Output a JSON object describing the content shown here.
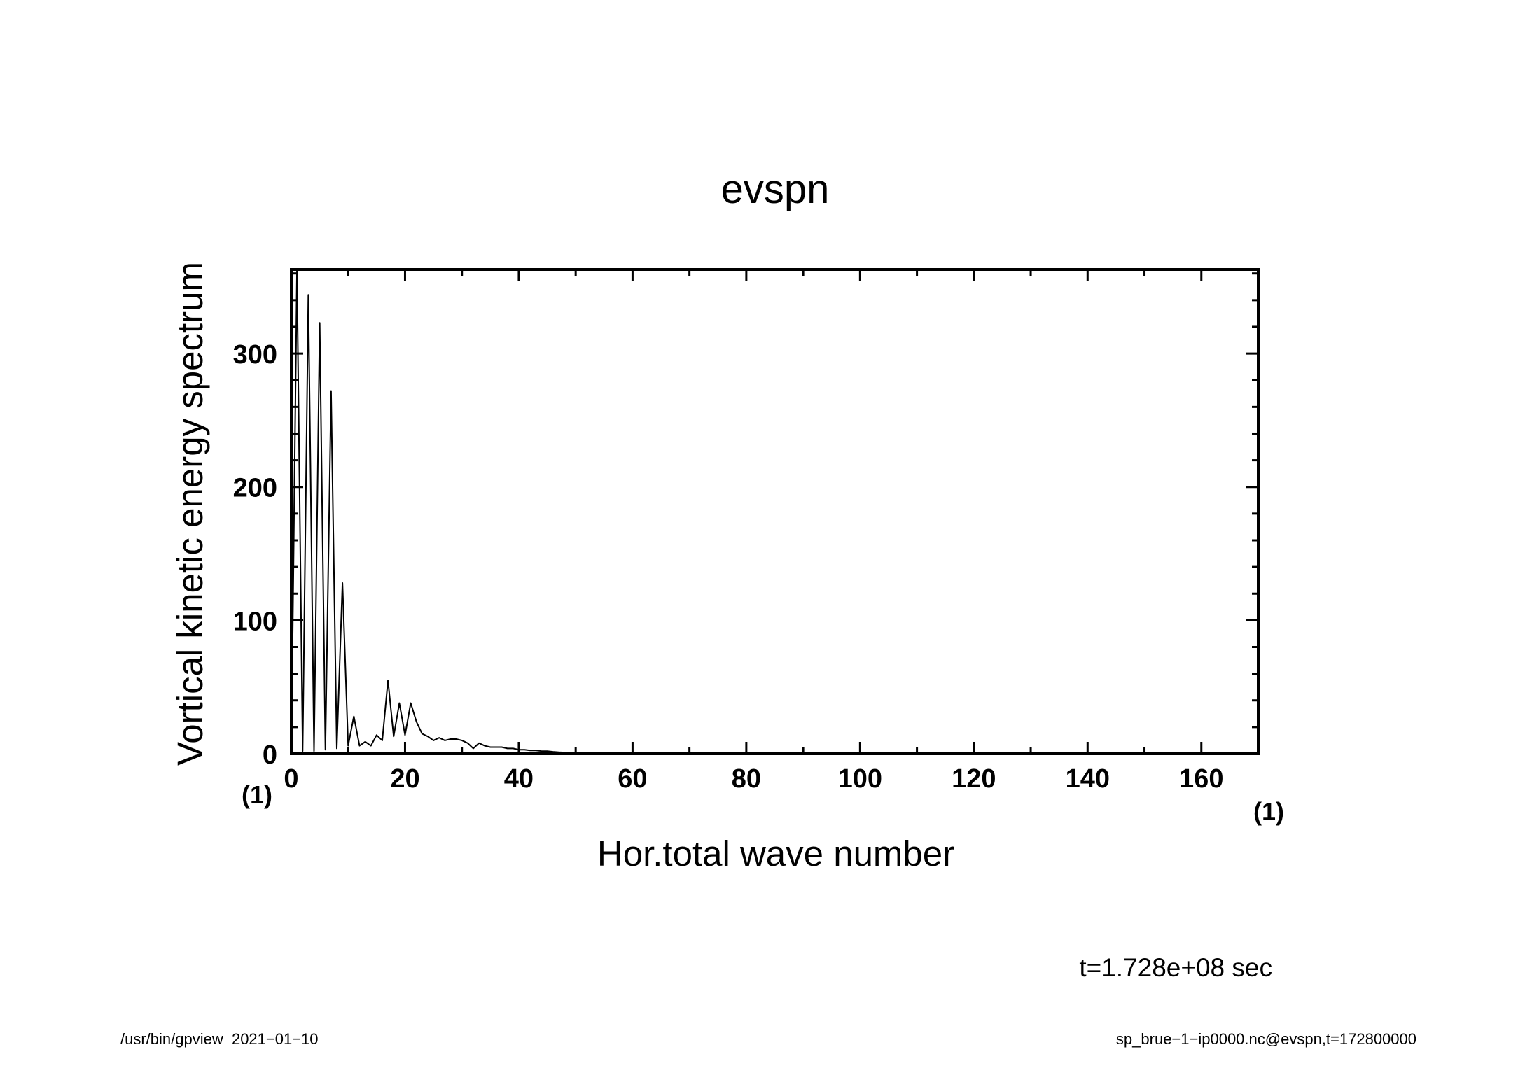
{
  "chart_data": {
    "type": "line",
    "title": "evspn",
    "xlabel": "Hor.total wave number",
    "ylabel": "Vortical kinetic energy spectrum",
    "xlim": [
      0,
      170
    ],
    "ylim": [
      0,
      363
    ],
    "x_ticks": [
      0,
      20,
      40,
      60,
      80,
      100,
      120,
      140,
      160
    ],
    "x_tick_labels": [
      "0",
      "20",
      "40",
      "60",
      "80",
      "100",
      "120",
      "140",
      "160"
    ],
    "x_minor_tick_step": 10,
    "y_ticks": [
      0,
      100,
      200,
      300
    ],
    "y_tick_labels": [
      "0",
      "100",
      "200",
      "300"
    ],
    "y_minor_tick_step": 20,
    "x_unit_label": "(1)",
    "y_unit_label": "(1)",
    "grid": false,
    "series": [
      {
        "x": [
          0,
          1,
          2,
          3,
          4,
          5,
          6,
          7,
          8,
          9,
          10,
          11,
          12,
          13,
          14,
          15,
          16,
          17,
          18,
          19,
          20,
          21,
          22,
          23,
          24,
          25,
          26,
          27,
          28,
          29,
          30,
          31,
          32,
          33,
          34,
          35,
          36,
          37,
          38,
          39,
          40,
          41,
          42,
          43,
          44,
          45,
          46,
          47,
          48,
          49,
          50,
          51,
          52,
          53,
          54,
          55,
          56,
          57,
          58,
          59,
          60,
          61,
          62,
          63,
          64,
          65,
          66,
          67,
          68,
          69,
          70,
          71,
          72,
          73,
          74,
          75,
          76,
          77,
          78,
          79,
          80,
          81,
          82,
          83,
          84,
          85,
          86,
          87,
          88,
          89,
          90,
          91,
          92,
          93,
          94,
          95,
          96,
          97,
          98,
          99,
          100,
          101,
          102,
          103,
          104,
          105,
          106,
          107,
          108,
          109,
          110,
          111,
          112,
          113,
          114,
          115,
          116,
          117,
          118,
          119,
          120,
          121,
          122,
          123,
          124,
          125,
          126,
          127,
          128,
          129,
          130,
          131,
          132,
          133,
          134,
          135,
          136,
          137,
          138,
          139,
          140,
          141,
          142,
          143,
          144,
          145,
          146,
          147,
          148,
          149,
          150,
          151,
          152,
          153,
          154,
          155,
          156,
          157,
          158,
          159,
          160,
          161,
          162,
          163,
          164,
          165,
          166,
          167,
          168,
          169,
          170
        ],
        "y": [
          0,
          363,
          2,
          344,
          2,
          323,
          3,
          272,
          4,
          128,
          6,
          28,
          6,
          9,
          6,
          14,
          10,
          55,
          13,
          38,
          14,
          38,
          24,
          15,
          13,
          10,
          12,
          10,
          11,
          11,
          10,
          8,
          4,
          8,
          6,
          5,
          5,
          5,
          4,
          4,
          3,
          3,
          2.5,
          2.5,
          2,
          2,
          1.5,
          1.2,
          1,
          0.8,
          0.7,
          0.6,
          0.5,
          0.4,
          0.3,
          0.3,
          0.2,
          0.2,
          0.1,
          0.1,
          0,
          0,
          0,
          0,
          0,
          0,
          0,
          0,
          0,
          0,
          0,
          0,
          0,
          0,
          0,
          0,
          0,
          0,
          0,
          0,
          0,
          0,
          0,
          0,
          0,
          0,
          0,
          0,
          0,
          0,
          0,
          0,
          0,
          0,
          0,
          0,
          0,
          0,
          0,
          0,
          0,
          0,
          0,
          0,
          0,
          0,
          0,
          0,
          0,
          0,
          0,
          0,
          0,
          0,
          0,
          0,
          0,
          0,
          0,
          0,
          0,
          0,
          0,
          0,
          0,
          0,
          0,
          0,
          0,
          0,
          0,
          0,
          0,
          0,
          0,
          0,
          0,
          0,
          0,
          0,
          0,
          0,
          0,
          0,
          0,
          0,
          0,
          0,
          0,
          0,
          0,
          0,
          0,
          0,
          0,
          0,
          0,
          0,
          0,
          0,
          0,
          0,
          0,
          0,
          0,
          0,
          0,
          0,
          0,
          0,
          0
        ]
      }
    ]
  },
  "annotation": {
    "time": "t=1.728e+08 sec"
  },
  "footer": {
    "left": "/usr/bin/gpview  2021−01−10",
    "right": "sp_brue−1−ip0000.nc@evspn,t=172800000"
  },
  "colors": {
    "background": "#ffffff",
    "foreground": "#000000"
  }
}
